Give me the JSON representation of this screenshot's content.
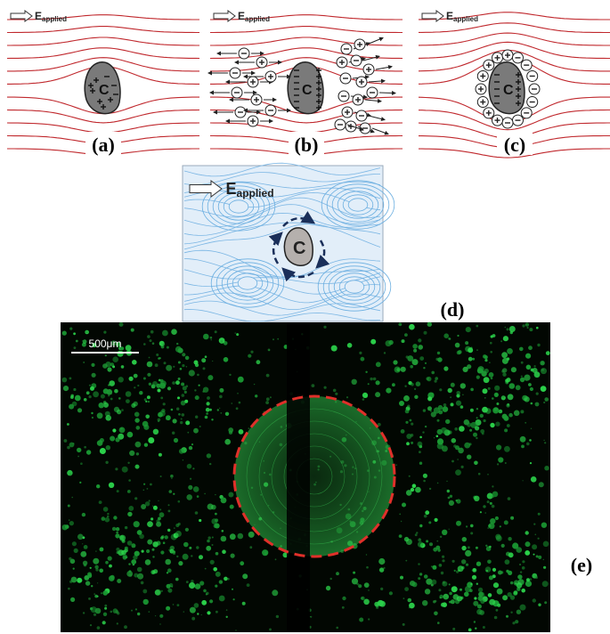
{
  "panels": [
    {
      "label": "(a)",
      "field_label": "E",
      "field_subscript": "applied",
      "particle_label": "C"
    },
    {
      "label": "(b)",
      "field_label": "E",
      "field_subscript": "applied",
      "particle_label": "C"
    },
    {
      "label": "(c)",
      "field_label": "E",
      "field_subscript": "applied",
      "particle_label": "C"
    },
    {
      "label": "(d)",
      "field_label": "E",
      "field_subscript": "applied",
      "particle_label": "C"
    },
    {
      "label": "(e)",
      "scale_bar": "500μm"
    }
  ]
}
